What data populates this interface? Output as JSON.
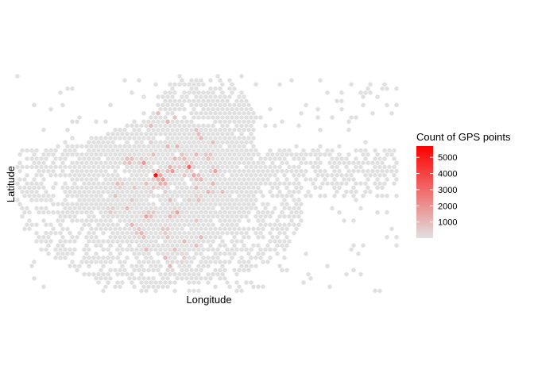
{
  "chart_data": {
    "type": "hexbin",
    "title": "",
    "xlabel": "Longitude",
    "ylabel": "Latitude",
    "axis_ticks_shown": false,
    "grid": false,
    "legend": {
      "title": "Count of GPS points",
      "placement": "right",
      "ticks": [
        1000,
        2000,
        3000,
        4000,
        5000
      ],
      "range": [
        1,
        5700
      ],
      "low_color": "#e0e0e0",
      "high_color": "#ff0000"
    }
  }
}
